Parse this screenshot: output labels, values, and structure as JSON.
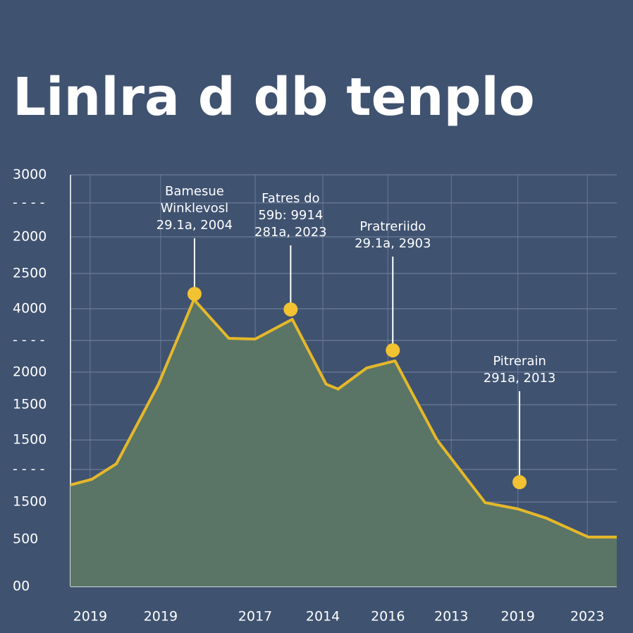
{
  "chart_data": {
    "type": "area",
    "title": "Linlra d db tenplo",
    "xlim": [
      0,
      100
    ],
    "xticks": [
      {
        "value": 3.6,
        "label": "2019"
      },
      {
        "value": 16.5,
        "label": "2019"
      },
      {
        "value": 33.8,
        "label": "2017"
      },
      {
        "value": 46.2,
        "label": "2014"
      },
      {
        "value": 58.1,
        "label": "2016"
      },
      {
        "value": 69.7,
        "label": "2013"
      },
      {
        "value": 81.9,
        "label": "2019"
      },
      {
        "value": 94.6,
        "label": "2023"
      }
    ],
    "ylim": [
      0,
      3000
    ],
    "yticks": [
      3000,
      {
        "value": 2795,
        "label": "- - - -"
      },
      {
        "value": 2548,
        "label": "2000"
      },
      {
        "value": 2281,
        "label": "2500"
      },
      {
        "value": 2024,
        "label": "4000"
      },
      {
        "value": 1793,
        "label": "- - - -"
      },
      {
        "value": 1562,
        "label": "2000"
      },
      {
        "value": 1325,
        "label": "1500"
      },
      {
        "value": 1068,
        "label": "1500"
      },
      {
        "value": 853,
        "label": "- - - -"
      },
      {
        "value": 616,
        "label": "1500"
      },
      {
        "value": 344,
        "label": "500"
      },
      {
        "value": 0,
        "label": "00"
      }
    ],
    "grid": true,
    "series": [
      {
        "color": "#e5b82a",
        "fill": "#5a7566",
        "x": [
          0,
          3.9,
          8.4,
          16.1,
          22.6,
          29,
          33.8,
          40.6,
          46.8,
          54.2,
          60,
          67.1,
          75.9,
          81.9,
          87.1,
          94.8,
          100
        ],
        "values": [
          740,
          781,
          894,
          1474,
          2091,
          1808,
          1803,
          1947,
          1474,
          1356,
          1207,
          1068,
          611,
          565,
          498,
          360,
          360
        ]
      },
      {
        "color": "#e5b82a",
        "fill": "#5a7566",
        "x": [
          48.8,
          54.2,
          59.4,
          67.1
        ],
        "values": [
          1433,
          1592,
          1644,
          1068
        ]
      }
    ],
    "annotations": [
      {
        "lines": [
          "Bamesue",
          "Winklevosl",
          "29.1a, 2004"
        ],
        "x": 22.7,
        "y": 2132
      },
      {
        "lines": [
          "Fatres do",
          "59b: 9914",
          "281a, 2023"
        ],
        "x": 40.3,
        "y": 2019
      },
      {
        "lines": [
          "Pratreriido",
          "29.1a, 2903"
        ],
        "x": 59.0,
        "y": 1721
      },
      {
        "lines": [
          "Pitrerain",
          "291a, 2013"
        ],
        "x": 82.2,
        "y": 760
      }
    ],
    "marker_color": "#f1c232"
  }
}
